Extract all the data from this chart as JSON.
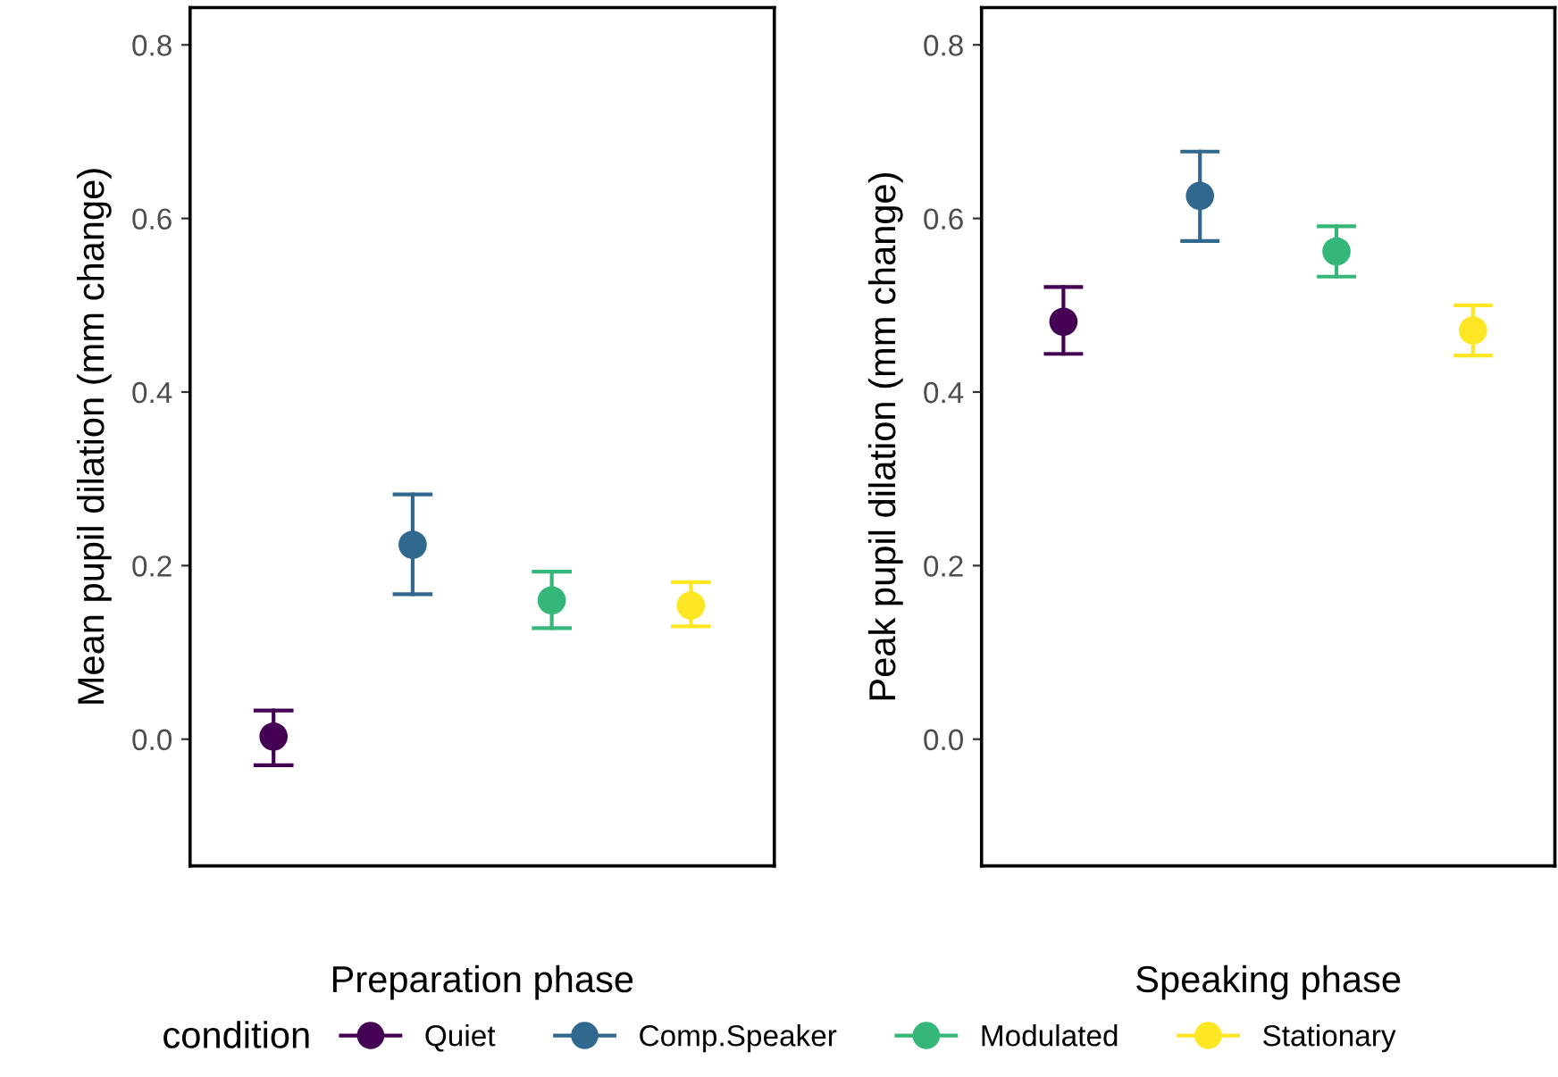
{
  "chart_data": [
    {
      "type": "scatter",
      "xlabel": "Preparation phase",
      "ylabel": "Mean pupil dilation (mm change)",
      "legend_title": "condition",
      "legend": "bottom",
      "marker": "circle",
      "grid": false,
      "tick_labels": "y",
      "categories": [
        null,
        null,
        null,
        null
      ],
      "ylim": [
        -0.146,
        0.843
      ],
      "yticks": [
        {
          "value": 0,
          "label": "0.0"
        },
        0.2,
        0.4,
        0.6,
        0.8
      ],
      "series": [
        {
          "name": "Quiet",
          "color": "#440154",
          "values": [
            0.003,
            null,
            null,
            null
          ],
          "errors": [
            [
              -0.03,
              0.033
            ],
            null,
            null,
            null
          ]
        },
        {
          "name": "Comp.Speaker",
          "color": "#31688e",
          "values": [
            null,
            0.224,
            null,
            null
          ],
          "errors": [
            null,
            [
              0.167,
              0.282
            ],
            null,
            null
          ]
        },
        {
          "name": "Modulated",
          "color": "#35b779",
          "values": [
            null,
            null,
            0.16,
            null
          ],
          "errors": [
            null,
            null,
            [
              0.128,
              0.193
            ],
            null
          ]
        },
        {
          "name": "Stationary",
          "color": "#fde725",
          "values": [
            null,
            null,
            null,
            0.154
          ],
          "errors": [
            null,
            null,
            null,
            [
              0.13,
              0.181
            ]
          ]
        }
      ]
    },
    {
      "type": "scatter",
      "xlabel": "Speaking phase",
      "ylabel": "Peak pupil dilation (mm change)",
      "marker": "circle",
      "grid": false,
      "tick_labels": "y",
      "categories": [
        null,
        null,
        null,
        null
      ],
      "ylim": [
        -0.146,
        0.843
      ],
      "yticks": [
        {
          "value": 0,
          "label": "0.0"
        },
        0.2,
        0.4,
        0.6,
        0.8
      ],
      "series": [
        {
          "color": "#440154",
          "values": [
            0.481,
            null,
            null,
            null
          ],
          "errors": [
            [
              0.444,
              0.521
            ],
            null,
            null,
            null
          ]
        },
        {
          "color": "#31688e",
          "values": [
            null,
            0.626,
            null,
            null
          ],
          "errors": [
            null,
            [
              0.574,
              0.677
            ],
            null,
            null
          ]
        },
        {
          "color": "#35b779",
          "values": [
            null,
            null,
            0.562,
            null
          ],
          "errors": [
            null,
            null,
            [
              0.533,
              0.591
            ],
            null
          ]
        },
        {
          "color": "#fde725",
          "values": [
            null,
            null,
            null,
            0.471
          ],
          "errors": [
            null,
            null,
            null,
            [
              0.442,
              0.5
            ]
          ]
        }
      ]
    }
  ]
}
